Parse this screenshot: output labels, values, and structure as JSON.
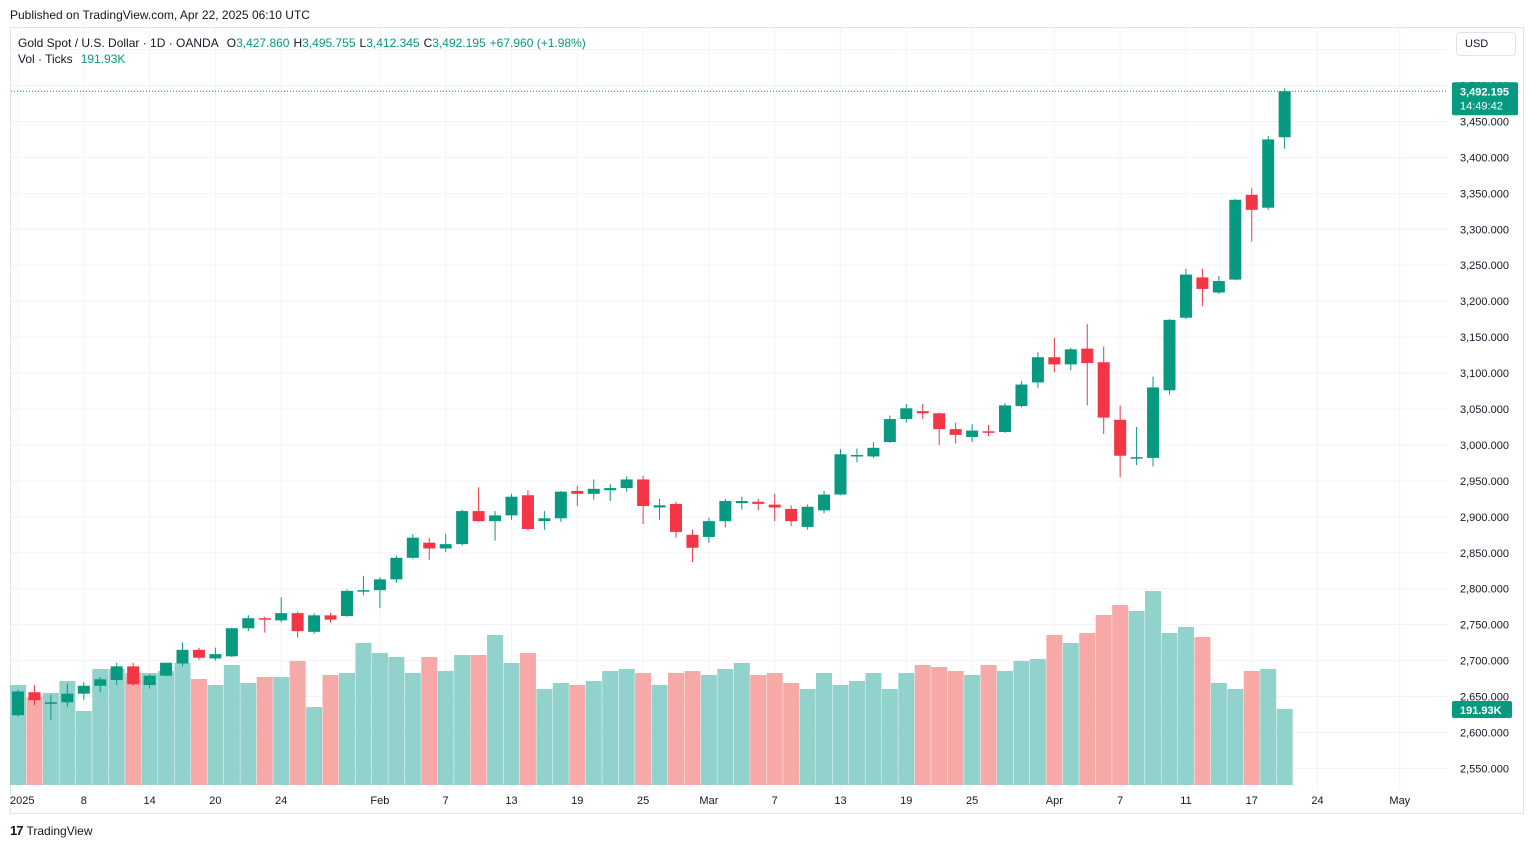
{
  "header": {
    "published": "Published on TradingView.com, Apr 22, 2025 06:10 UTC"
  },
  "legend": {
    "symbol": "Gold Spot / U.S. Dollar · 1D · OANDA",
    "o_label": "O",
    "o_value": "3,427.860",
    "h_label": "H",
    "h_value": "3,495.755",
    "l_label": "L",
    "l_value": "3,412.345",
    "c_label": "C",
    "c_value": "3,492.195",
    "change": "+67.960 (+1.98%)",
    "vol_label": "Vol · Ticks",
    "vol_value": "191.93K"
  },
  "currency_button": "USD",
  "footer": {
    "logo_mark": "17",
    "logo_text": "TradingView"
  },
  "colors": {
    "up": "#089981",
    "down": "#f23645",
    "vol_up": "#92d2cc",
    "vol_down": "#f7a9a7",
    "grid": "#f0f3fa"
  },
  "chart_data": {
    "type": "candlestick",
    "price_axis": {
      "ticks": [
        "3,550.000",
        "3,500.000",
        "3,450.000",
        "3,400.000",
        "3,350.000",
        "3,300.000",
        "3,250.000",
        "3,200.000",
        "3,150.000",
        "3,100.000",
        "3,050.000",
        "3,000.000",
        "2,950.000",
        "2,900.000",
        "2,850.000",
        "2,800.000",
        "2,750.000",
        "2,700.000",
        "2,650.000",
        "2,600.000",
        "2,550.000"
      ],
      "ylim": [
        2520,
        3580
      ]
    },
    "time_axis": {
      "labels": [
        {
          "i": 0,
          "text": "2025"
        },
        {
          "i": 4,
          "text": "8"
        },
        {
          "i": 8,
          "text": "14"
        },
        {
          "i": 12,
          "text": "20"
        },
        {
          "i": 16,
          "text": "24"
        },
        {
          "i": 22,
          "text": "Feb"
        },
        {
          "i": 26,
          "text": "7"
        },
        {
          "i": 30,
          "text": "13"
        },
        {
          "i": 34,
          "text": "19"
        },
        {
          "i": 38,
          "text": "25"
        },
        {
          "i": 42,
          "text": "Mar"
        },
        {
          "i": 46,
          "text": "7"
        },
        {
          "i": 50,
          "text": "13"
        },
        {
          "i": 54,
          "text": "19"
        },
        {
          "i": 58,
          "text": "25"
        },
        {
          "i": 63,
          "text": "Apr"
        },
        {
          "i": 67,
          "text": "7"
        },
        {
          "i": 71,
          "text": "11"
        },
        {
          "i": 75,
          "text": "17"
        },
        {
          "i": 79,
          "text": "24"
        },
        {
          "i": 84,
          "text": "May"
        }
      ]
    },
    "last_price_label": "3,492.195",
    "countdown_label": "14:49:42",
    "last_volume_label": "191.93K",
    "candles": [
      [
        2624,
        2660,
        2622,
        2657,
        0.5
      ],
      [
        2656,
        2666,
        2638,
        2645,
        0.44
      ],
      [
        2641,
        2652,
        2617,
        2642,
        0.46
      ],
      [
        2642,
        2668,
        2636,
        2654,
        0.52
      ],
      [
        2654,
        2670,
        2645,
        2665,
        0.37
      ],
      [
        2665,
        2677,
        2656,
        2674,
        0.58
      ],
      [
        2673,
        2697,
        2666,
        2692,
        0.58
      ],
      [
        2692,
        2697,
        2665,
        2667,
        0.56
      ],
      [
        2666,
        2681,
        2661,
        2679,
        0.56
      ],
      [
        2679,
        2697,
        2678,
        2697,
        0.57
      ],
      [
        2696,
        2725,
        2692,
        2715,
        0.61
      ],
      [
        2715,
        2718,
        2701,
        2704,
        0.53
      ],
      [
        2703,
        2718,
        2700,
        2709,
        0.5
      ],
      [
        2706,
        2746,
        2705,
        2745,
        0.6
      ],
      [
        2745,
        2763,
        2741,
        2759,
        0.51
      ],
      [
        2759,
        2761,
        2739,
        2758,
        0.54
      ],
      [
        2756,
        2788,
        2753,
        2766,
        0.54
      ],
      [
        2766,
        2768,
        2732,
        2741,
        0.62
      ],
      [
        2740,
        2766,
        2737,
        2763,
        0.39
      ],
      [
        2763,
        2766,
        2753,
        2757,
        0.55
      ],
      [
        2762,
        2799,
        2761,
        2797,
        0.56
      ],
      [
        2797,
        2818,
        2791,
        2798,
        0.71
      ],
      [
        2798,
        2816,
        2773,
        2813,
        0.66
      ],
      [
        2813,
        2846,
        2808,
        2843,
        0.64
      ],
      [
        2843,
        2876,
        2841,
        2871,
        0.56
      ],
      [
        2864,
        2871,
        2840,
        2856,
        0.64
      ],
      [
        2856,
        2876,
        2851,
        2862,
        0.57
      ],
      [
        2862,
        2910,
        2860,
        2908,
        0.65
      ],
      [
        2908,
        2941,
        2893,
        2894,
        0.65
      ],
      [
        2894,
        2908,
        2867,
        2902,
        0.75
      ],
      [
        2902,
        2932,
        2896,
        2928,
        0.61
      ],
      [
        2930,
        2937,
        2881,
        2883,
        0.66
      ],
      [
        2894,
        2908,
        2882,
        2898,
        0.48
      ],
      [
        2898,
        2936,
        2893,
        2935,
        0.51
      ],
      [
        2936,
        2943,
        2915,
        2932,
        0.5
      ],
      [
        2932,
        2952,
        2924,
        2939,
        0.52
      ],
      [
        2937,
        2946,
        2922,
        2940,
        0.57
      ],
      [
        2940,
        2956,
        2935,
        2952,
        0.58
      ],
      [
        2952,
        2957,
        2890,
        2915,
        0.56
      ],
      [
        2913,
        2925,
        2896,
        2916,
        0.5
      ],
      [
        2918,
        2921,
        2871,
        2879,
        0.56
      ],
      [
        2875,
        2882,
        2837,
        2857,
        0.57
      ],
      [
        2872,
        2899,
        2864,
        2894,
        0.55
      ],
      [
        2894,
        2925,
        2885,
        2922,
        0.58
      ],
      [
        2919,
        2928,
        2910,
        2922,
        0.61
      ],
      [
        2921,
        2925,
        2909,
        2918,
        0.55
      ],
      [
        2917,
        2932,
        2894,
        2913,
        0.56
      ],
      [
        2911,
        2916,
        2887,
        2894,
        0.51
      ],
      [
        2886,
        2917,
        2882,
        2914,
        0.48
      ],
      [
        2909,
        2936,
        2905,
        2931,
        0.56
      ],
      [
        2931,
        2994,
        2930,
        2987,
        0.5
      ],
      [
        2984,
        2995,
        2976,
        2986,
        0.52
      ],
      [
        2984,
        3004,
        2982,
        2996,
        0.56
      ],
      [
        3004,
        3041,
        3003,
        3036,
        0.48
      ],
      [
        3036,
        3057,
        3031,
        3051,
        0.56
      ],
      [
        3047,
        3057,
        3036,
        3044,
        0.6
      ],
      [
        3044,
        3045,
        3000,
        3022,
        0.59
      ],
      [
        3022,
        3031,
        3002,
        3014,
        0.57
      ],
      [
        3011,
        3029,
        3004,
        3020,
        0.55
      ],
      [
        3019,
        3028,
        3012,
        3018,
        0.6
      ],
      [
        3018,
        3058,
        3017,
        3055,
        0.57
      ],
      [
        3054,
        3089,
        3052,
        3084,
        0.62
      ],
      [
        3087,
        3129,
        3079,
        3122,
        0.63
      ],
      [
        3122,
        3149,
        3101,
        3112,
        0.75
      ],
      [
        3112,
        3135,
        3104,
        3133,
        0.71
      ],
      [
        3134,
        3168,
        3055,
        3114,
        0.76
      ],
      [
        3115,
        3137,
        3015,
        3038,
        0.85
      ],
      [
        3035,
        3055,
        2955,
        2985,
        0.9
      ],
      [
        2983,
        3025,
        2972,
        2983,
        0.87
      ],
      [
        2982,
        3095,
        2970,
        3080,
        0.97
      ],
      [
        3076,
        3175,
        3070,
        3174,
        0.76
      ],
      [
        3177,
        3245,
        3175,
        3237,
        0.79
      ],
      [
        3233,
        3245,
        3193,
        3217,
        0.74
      ],
      [
        3212,
        3235,
        3210,
        3228,
        0.51
      ],
      [
        3230,
        3342,
        3229,
        3341,
        0.48
      ],
      [
        3348,
        3357,
        3283,
        3327,
        0.57
      ],
      [
        3330,
        3430,
        3327,
        3425,
        0.58
      ],
      [
        3428,
        3496,
        3412,
        3492,
        0.38
      ]
    ]
  }
}
